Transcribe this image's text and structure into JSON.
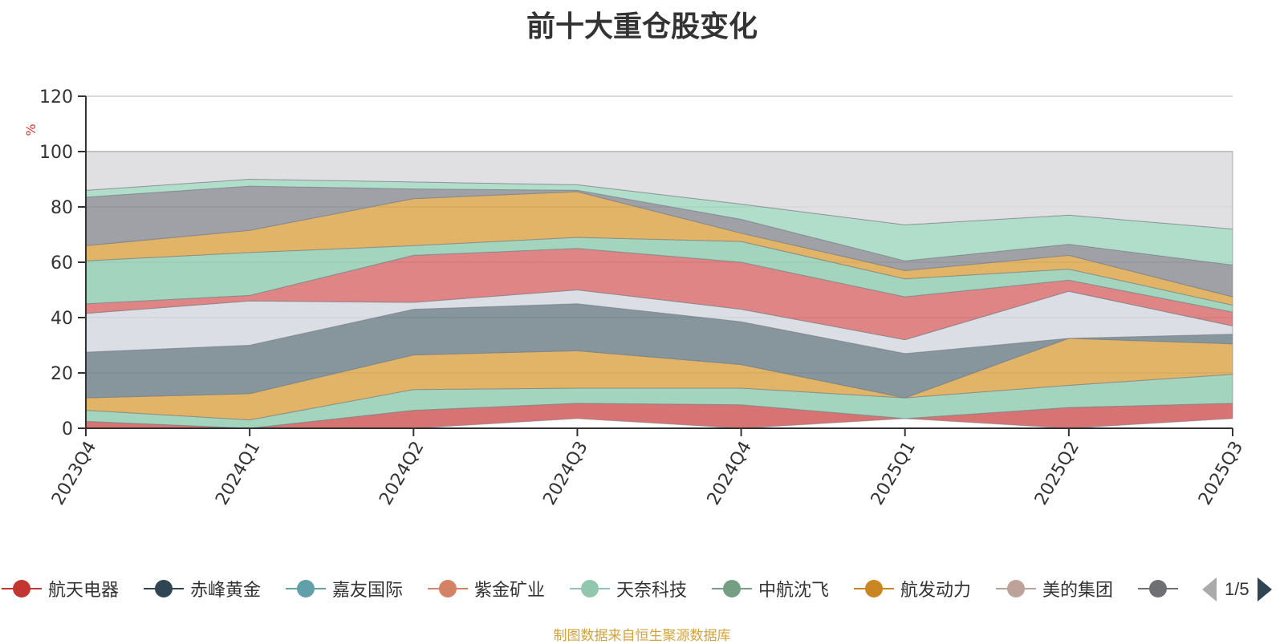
{
  "chart_data": {
    "type": "area",
    "title": "前十大重仓股变化",
    "ylabel": "%",
    "ylim": [
      0,
      120
    ],
    "yticks": [
      0,
      20,
      40,
      60,
      80,
      100,
      120
    ],
    "categories": [
      "2023Q4",
      "2024Q1",
      "2024Q2",
      "2024Q3",
      "2024Q4",
      "2025Q1",
      "2025Q2",
      "2025Q3"
    ],
    "grid": true,
    "legend_position": "bottom",
    "boundaries": [
      [
        0,
        0,
        0,
        3.5,
        0,
        3.5,
        0,
        3.5
      ],
      [
        2.5,
        0,
        6.5,
        9,
        8.5,
        3.5,
        7.5,
        9
      ],
      [
        6.5,
        3,
        14,
        14.5,
        14.5,
        11,
        15.5,
        19.5
      ],
      [
        11,
        12.5,
        26.5,
        28,
        23,
        11,
        32.5,
        30.5
      ],
      [
        27.5,
        30,
        43,
        45,
        38.5,
        27,
        32.5,
        34
      ],
      [
        41.5,
        46,
        45.5,
        50,
        43,
        32,
        49.5,
        37
      ],
      [
        45,
        48,
        62.5,
        65,
        60,
        47.5,
        53.5,
        42
      ],
      [
        60.5,
        63.5,
        66,
        69,
        67.5,
        54,
        57.5,
        44.5
      ],
      [
        66,
        71.5,
        83,
        85.5,
        70.5,
        57,
        62.5,
        47.5
      ],
      [
        83.5,
        87.5,
        86.5,
        86,
        75.5,
        60.5,
        66.5,
        59
      ],
      [
        86,
        90,
        89,
        88,
        81,
        73.5,
        77,
        72
      ],
      [
        100,
        100,
        100,
        100,
        100,
        100,
        100,
        100
      ]
    ],
    "band_colors": [
      "#d05454",
      "#8fcbb0",
      "#dba447",
      "#6d7e87",
      "#d3d8df",
      "#d86a6a",
      "#8fcbb0",
      "#dba447",
      "#8a8c92",
      "#a0d6bf",
      "#d9d9dc",
      "#4b5c6b"
    ],
    "series": [
      {
        "name": "航天电器",
        "color": "#c23531"
      },
      {
        "name": "赤峰黄金",
        "color": "#2f4554"
      },
      {
        "name": "嘉友国际",
        "color": "#61a0a8"
      },
      {
        "name": "紫金矿业",
        "color": "#d48265"
      },
      {
        "name": "天奈科技",
        "color": "#91c7ae"
      },
      {
        "name": "中航沈飞",
        "color": "#749f83"
      },
      {
        "name": "航发动力",
        "color": "#ca8622"
      },
      {
        "name": "美的集团",
        "color": "#bda29a"
      },
      {
        "name": "",
        "color": "#6e7074"
      }
    ]
  },
  "legend": {
    "page": "1/5"
  },
  "source_note": "制图数据来自恒生聚源数据库"
}
